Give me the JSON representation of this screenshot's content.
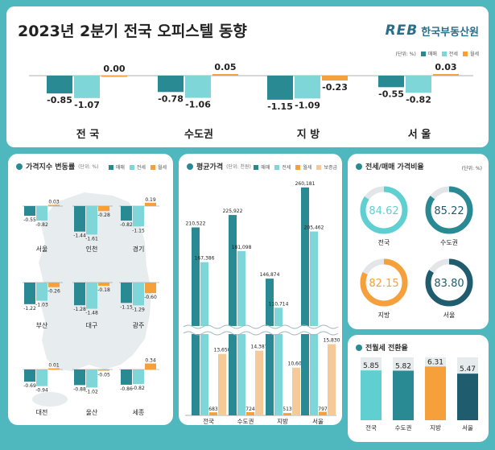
{
  "header": {
    "title": "2023년 2분기 전국 오피스텔 동향",
    "logo_mark": "REB",
    "logo_text": "한국부동산원",
    "unit": "(단위: %)"
  },
  "colors": {
    "sale": "#2a8a94",
    "jeonse": "#7fd6d8",
    "wolse": "#f5a03a",
    "deposit": "#f5c998",
    "seoul_ring": "#1f5c6e",
    "teal_ring": "#5fcfd1",
    "orange_ring": "#f5a03a"
  },
  "legend": {
    "sale": "매매",
    "jeonse": "전세",
    "wolse": "월세",
    "deposit": "보증금"
  },
  "panels": {
    "index_title": "가격지수 변동률",
    "index_unit": "(단위: %)",
    "price_title": "평균가격",
    "price_unit": "(단위: 천원)",
    "ratio_title": "전세/매매 가격비율",
    "ratio_unit": "(단위: %)",
    "conv_title": "전월세 전환율"
  },
  "chart_data": [
    {
      "id": "top",
      "type": "bar",
      "title": "2023년 2분기 전국 오피스텔 동향",
      "categories": [
        "전 국",
        "수도권",
        "지 방",
        "서 울"
      ],
      "series": [
        {
          "name": "매매",
          "values": [
            -0.85,
            -0.78,
            -1.15,
            -0.55
          ]
        },
        {
          "name": "전세",
          "values": [
            -1.07,
            -1.06,
            -1.09,
            -0.82
          ]
        },
        {
          "name": "월세",
          "values": [
            0.0,
            0.05,
            -0.23,
            0.03
          ]
        }
      ],
      "labels": [
        [
          "-0.85",
          "-1.07",
          "0.00"
        ],
        [
          "-0.78",
          "-1.06",
          "0.05"
        ],
        [
          "-1.15",
          "-1.09",
          "-0.23"
        ],
        [
          "-0.55",
          "-0.82",
          "0.03"
        ]
      ]
    },
    {
      "id": "regional",
      "type": "bar",
      "title": "가격지수 변동률",
      "categories": [
        "서울",
        "인천",
        "경기",
        "부산",
        "대구",
        "광주",
        "대전",
        "울산",
        "세종"
      ],
      "series": [
        {
          "name": "매매",
          "values": [
            -0.55,
            -1.44,
            -0.82,
            -1.22,
            -1.28,
            -1.15,
            -0.69,
            -0.88,
            -0.86
          ]
        },
        {
          "name": "전세",
          "values": [
            -0.82,
            -1.61,
            -1.15,
            -1.03,
            -1.48,
            -1.29,
            -0.94,
            -1.02,
            -0.82
          ]
        },
        {
          "name": "월세",
          "values": [
            0.03,
            -0.28,
            0.19,
            -0.26,
            -0.18,
            -0.6,
            0.01,
            -0.05,
            0.34
          ]
        }
      ],
      "labels": [
        [
          "-0.55",
          "-0.82",
          "0.03"
        ],
        [
          "-1.44",
          "-1.61",
          "-0.28"
        ],
        [
          "-0.82",
          "-1.15",
          "0.19"
        ],
        [
          "-1.22",
          "-1.03",
          "-0.26"
        ],
        [
          "-1.28",
          "-1.48",
          "-0.18"
        ],
        [
          "-1.15",
          "-1.29",
          "-0.60"
        ],
        [
          "-0.69",
          "-0.94",
          "0.01"
        ],
        [
          "-0.88",
          "-1.02",
          "-0.05"
        ],
        [
          "-0.86",
          "-0.82",
          "0.34"
        ]
      ]
    },
    {
      "id": "price",
      "type": "bar",
      "title": "평균가격",
      "categories": [
        "전국",
        "수도권",
        "지방",
        "서울"
      ],
      "series": [
        {
          "name": "매매",
          "values": [
            210522,
            225922,
            146874,
            260181
          ]
        },
        {
          "name": "전세",
          "values": [
            167386,
            181098,
            110714,
            205462
          ]
        },
        {
          "name": "월세",
          "values": [
            683,
            724,
            513,
            797
          ]
        },
        {
          "name": "보증금",
          "values": [
            13650,
            14387,
            10603,
            15830
          ]
        }
      ],
      "labels": [
        [
          "210,522",
          "167,386",
          "683",
          "13,650"
        ],
        [
          "225,922",
          "181,098",
          "724",
          "14,387"
        ],
        [
          "146,874",
          "110,714",
          "513",
          "10,603"
        ],
        [
          "260,181",
          "205,462",
          "797",
          "15,830"
        ]
      ]
    },
    {
      "id": "ratio",
      "type": "pie",
      "title": "전세/매매 가격비율",
      "categories": [
        "전국",
        "수도권",
        "지방",
        "서울"
      ],
      "values": [
        84.62,
        85.22,
        82.15,
        83.8
      ],
      "labels": [
        "84.62",
        "85.22",
        "82.15",
        "83.80"
      ]
    },
    {
      "id": "conversion",
      "type": "bar",
      "title": "전월세 전환율",
      "categories": [
        "전국",
        "수도권",
        "지방",
        "서울"
      ],
      "values": [
        5.85,
        5.82,
        6.31,
        5.47
      ],
      "labels": [
        "5.85",
        "5.82",
        "6.31",
        "5.47"
      ]
    }
  ]
}
